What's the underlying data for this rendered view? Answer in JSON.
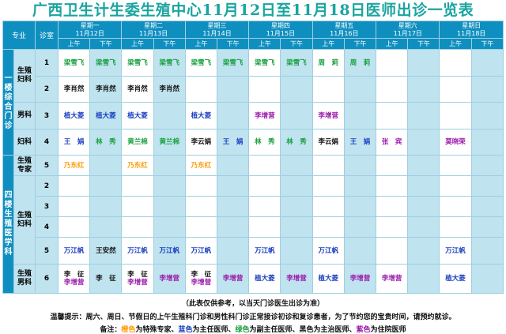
{
  "title": "广西卫生计生委生殖中心11月12日至11月18日医师出诊一览表",
  "header": {
    "specialty": "专业",
    "room": "诊室",
    "am": "上午",
    "pm": "下午",
    "days": [
      {
        "weekday": "星期一",
        "date": "11月12日"
      },
      {
        "weekday": "星期二",
        "date": "11月13日"
      },
      {
        "weekday": "星期三",
        "date": "11月14日"
      },
      {
        "weekday": "星期四",
        "date": "11月15日"
      },
      {
        "weekday": "星期五",
        "date": "11月16日"
      },
      {
        "weekday": "星期六",
        "date": "11月17日"
      },
      {
        "weekday": "星期日",
        "date": "11月18日"
      }
    ]
  },
  "groups": {
    "floor1": "一楼综合门诊",
    "floor4": "四楼生殖医学科",
    "sub_fuke": "生殖妇科",
    "sub_nanke": "男科",
    "sub_fuke2": "妇科",
    "sub_expert": "生殖专家",
    "sub_fuke3": "生殖妇科",
    "sub_nanke2": "生殖男科"
  },
  "rows": [
    {
      "room": "1",
      "cells": [
        [
          "梁雪飞",
          "green"
        ],
        [
          "梁雪飞",
          "green"
        ],
        [
          "梁雪飞",
          "green"
        ],
        [
          "梁雪飞",
          "green"
        ],
        [
          "梁雪飞",
          "green"
        ],
        [
          "梁雪飞",
          "green"
        ],
        [
          "梁雪飞",
          "green"
        ],
        [
          "梁雪飞",
          "green"
        ],
        [
          "周　莉",
          "green"
        ],
        [
          "周　莉",
          "green"
        ],
        [
          "",
          ""
        ],
        [
          "",
          ""
        ],
        [
          "",
          ""
        ],
        [
          "",
          ""
        ]
      ]
    },
    {
      "room": "2",
      "cells": [
        [
          "李肖然",
          "black"
        ],
        [
          "李肖然",
          "black"
        ],
        [
          "李肖然",
          "black"
        ],
        [
          "李肖然",
          "black"
        ],
        [
          "",
          ""
        ],
        [
          "",
          ""
        ],
        [
          "",
          ""
        ],
        [
          "",
          ""
        ],
        [
          "",
          ""
        ],
        [
          "",
          ""
        ],
        [
          "",
          ""
        ],
        [
          "",
          ""
        ],
        [
          "",
          ""
        ],
        [
          "",
          ""
        ]
      ]
    },
    {
      "room": "3",
      "cells": [
        [
          "植大菱",
          "blue"
        ],
        [
          "植大菱",
          "blue"
        ],
        [
          "植大菱",
          "blue"
        ],
        [
          "",
          ""
        ],
        [
          "植大菱",
          "blue"
        ],
        [
          "",
          ""
        ],
        [
          "李增营",
          "purple"
        ],
        [
          "",
          ""
        ],
        [
          "李增营",
          "purple"
        ],
        [
          "",
          ""
        ],
        [
          "",
          ""
        ],
        [
          "",
          ""
        ],
        [
          "",
          ""
        ],
        [
          "",
          ""
        ]
      ]
    },
    {
      "room": "4",
      "cells": [
        [
          "王　娟",
          "blue"
        ],
        [
          "林　秀",
          "green"
        ],
        [
          "黄兰棉",
          "green"
        ],
        [
          "黄兰棉",
          "green"
        ],
        [
          "李云娟",
          "black"
        ],
        [
          "王　娟",
          "blue"
        ],
        [
          "林　秀",
          "green"
        ],
        [
          "林　秀",
          "green"
        ],
        [
          "李云娟",
          "black"
        ],
        [
          "王　娟",
          "blue"
        ],
        [
          "张　宾",
          "purple"
        ],
        [
          "",
          ""
        ],
        [
          "莫晓荣",
          "purple"
        ],
        [
          "",
          ""
        ]
      ]
    },
    {
      "room": "5",
      "cells": [
        [
          "乃东红",
          "orange"
        ],
        [
          "",
          ""
        ],
        [
          "乃东红",
          "orange"
        ],
        [
          "",
          ""
        ],
        [
          "乃东红",
          "orange"
        ],
        [
          "",
          ""
        ],
        [
          "",
          ""
        ],
        [
          "",
          ""
        ],
        [
          "",
          ""
        ],
        [
          "",
          ""
        ],
        [
          "",
          ""
        ],
        [
          "",
          ""
        ],
        [
          "",
          ""
        ],
        [
          "",
          ""
        ]
      ]
    },
    {
      "room": "2",
      "cells": [
        [
          "",
          ""
        ],
        [
          "",
          ""
        ],
        [
          "",
          ""
        ],
        [
          "",
          ""
        ],
        [
          "",
          ""
        ],
        [
          "",
          ""
        ],
        [
          "",
          ""
        ],
        [
          "",
          ""
        ],
        [
          "",
          ""
        ],
        [
          "",
          ""
        ],
        [
          "",
          ""
        ],
        [
          "",
          ""
        ],
        [
          "",
          ""
        ],
        [
          "",
          ""
        ]
      ]
    },
    {
      "room": "3",
      "cells": [
        [
          "",
          ""
        ],
        [
          "",
          ""
        ],
        [
          "",
          ""
        ],
        [
          "",
          ""
        ],
        [
          "",
          ""
        ],
        [
          "",
          ""
        ],
        [
          "",
          ""
        ],
        [
          "",
          ""
        ],
        [
          "",
          ""
        ],
        [
          "",
          ""
        ],
        [
          "",
          ""
        ],
        [
          "",
          ""
        ],
        [
          "",
          ""
        ],
        [
          "",
          ""
        ]
      ]
    },
    {
      "room": "4",
      "cells": [
        [
          "",
          ""
        ],
        [
          "",
          ""
        ],
        [
          "",
          ""
        ],
        [
          "",
          ""
        ],
        [
          "",
          ""
        ],
        [
          "",
          ""
        ],
        [
          "",
          ""
        ],
        [
          "",
          ""
        ],
        [
          "",
          ""
        ],
        [
          "",
          ""
        ],
        [
          "",
          ""
        ],
        [
          "",
          ""
        ],
        [
          "",
          ""
        ],
        [
          "",
          ""
        ]
      ]
    },
    {
      "room": "5",
      "cells": [
        [
          "万江帆",
          "blue"
        ],
        [
          "王安然",
          "black"
        ],
        [
          "万江帆",
          "blue"
        ],
        [
          "万江帆",
          "blue"
        ],
        [
          "万江帆",
          "blue"
        ],
        [
          "",
          ""
        ],
        [
          "万江帆",
          "blue"
        ],
        [
          "",
          ""
        ],
        [
          "万江帆",
          "blue"
        ],
        [
          "",
          ""
        ],
        [
          "",
          ""
        ],
        [
          "",
          ""
        ],
        [
          "万江帆",
          "blue"
        ],
        [
          "",
          ""
        ]
      ]
    },
    {
      "room": "6",
      "cells": [
        [
          "李　征|李增营",
          "black|purple"
        ],
        [
          "李　征",
          "black"
        ],
        [
          "李　征|李增营",
          "black|purple"
        ],
        [
          "李增营",
          "purple"
        ],
        [
          "李　征|李增营",
          "black|purple"
        ],
        [
          "李增营",
          "purple"
        ],
        [
          "植大菱",
          "blue"
        ],
        [
          "李增营",
          "purple"
        ],
        [
          "植大菱",
          "blue"
        ],
        [
          "李增营",
          "purple"
        ],
        [
          "李增营",
          "purple"
        ],
        [
          "",
          ""
        ],
        [
          "植大菱",
          "blue"
        ],
        [
          "",
          ""
        ]
      ]
    }
  ],
  "notes": {
    "ref": "（此表仅供参考，以当天门诊医生出诊为准）",
    "tip": "温馨提示：周六、周日、节假日的上午生殖科门诊和男性科门诊正常接诊初诊和复诊患者，为了节约您的宝贵时间，请预约就诊。",
    "legend_prefix": "备注：",
    "legend": [
      {
        "word": "橙色",
        "text": "为特殊专家、",
        "color": "#ff9900"
      },
      {
        "word": "蓝色",
        "text": "为主任医师、",
        "color": "#1a3fbf"
      },
      {
        "word": "绿色",
        "text": "为副主任医师、",
        "color": "#1aa040"
      },
      {
        "word": "黑色",
        "text": "为主治医师、",
        "color": "#111111"
      },
      {
        "word": "紫色",
        "text": "为住院医师",
        "color": "#9a1aaa"
      }
    ]
  }
}
